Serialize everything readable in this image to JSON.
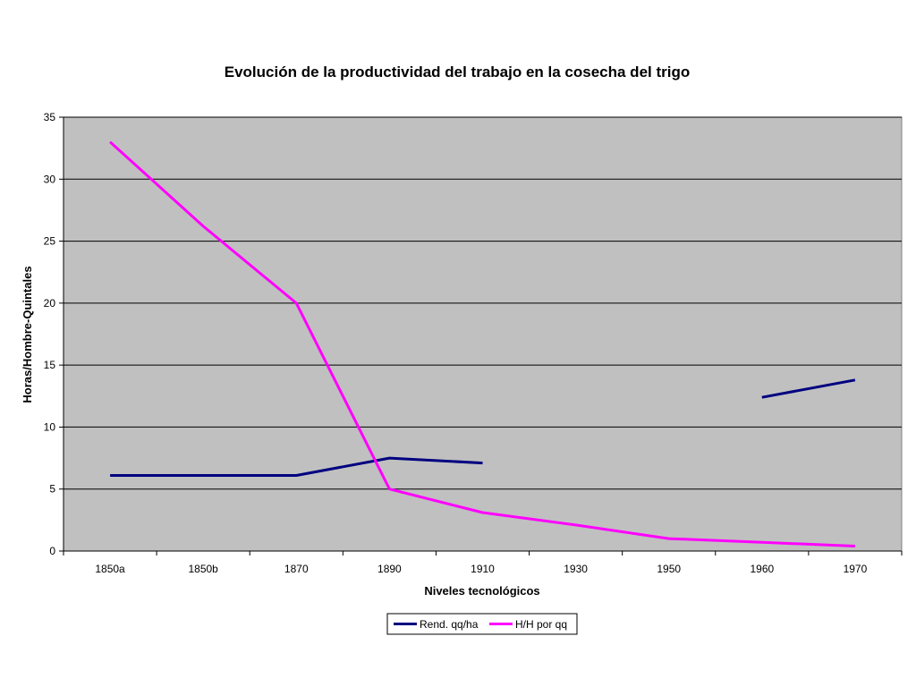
{
  "chart_data": {
    "type": "line",
    "title": "Evolución de la productividad del trabajo en la cosecha del trigo",
    "xlabel": "Niveles tecnológicos",
    "ylabel": "Horas/Hombre-Quintales",
    "categories": [
      "1850a",
      "1850b",
      "1870",
      "1890",
      "1910",
      "1930",
      "1950",
      "1960",
      "1970"
    ],
    "ylim": [
      0,
      35
    ],
    "yticks": [
      0,
      5,
      10,
      15,
      20,
      25,
      30,
      35
    ],
    "grid": true,
    "legend_position": "bottom",
    "series": [
      {
        "name": "Rend. qq/ha",
        "color": "#000080",
        "values": [
          6.1,
          6.1,
          6.1,
          7.5,
          7.1,
          null,
          null,
          12.4,
          13.8
        ]
      },
      {
        "name": "H/H por qq",
        "color": "#FF00FF",
        "values": [
          33.0,
          26.2,
          20.0,
          5.0,
          3.1,
          2.1,
          1.0,
          0.7,
          0.4
        ]
      }
    ],
    "plot_background": "#C0C0C0"
  }
}
